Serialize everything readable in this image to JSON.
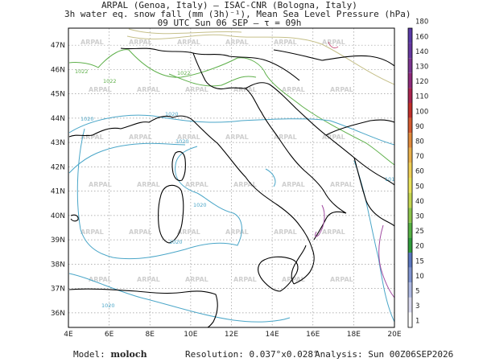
{
  "header": {
    "line1": "ARPAL (Genoa, Italy)  —  ISAC-CNR (Bologna, Italy)",
    "line2": "3h water eq. snow fall (mm (3h)⁻¹), Mean Sea Level Pressure (hPa)",
    "line3": "09 UTC Sun 06 SEP  —  τ = 09h"
  },
  "map": {
    "lon_labels": [
      "4E",
      "6E",
      "8E",
      "10E",
      "12E",
      "14E",
      "16E",
      "18E",
      "20E"
    ],
    "lat_labels": [
      "36N",
      "37N",
      "38N",
      "39N",
      "40N",
      "41N",
      "42N",
      "43N",
      "44N",
      "45N",
      "46N",
      "47N"
    ],
    "watermark": "ARPAL",
    "isobar_labels": [
      "1022",
      "1022",
      "1022",
      "1020",
      "1020",
      "1020",
      "1020",
      "1020",
      "1020",
      "1018"
    ]
  },
  "colorbar": {
    "ticks": [
      "1",
      "3",
      "5",
      "10",
      "15",
      "20",
      "25",
      "30",
      "40",
      "50",
      "60",
      "70",
      "80",
      "90",
      "100",
      "110",
      "120",
      "130",
      "140",
      "160",
      "180"
    ],
    "colors": [
      "#ffffff",
      "#d8d8ee",
      "#aeb9e2",
      "#7f93cf",
      "#5a76be",
      "#2f9a3c",
      "#55b043",
      "#8cc44b",
      "#c3d54f",
      "#e9e25a",
      "#efcf55",
      "#e9b04a",
      "#e08a3b",
      "#d35a30",
      "#c02f2a",
      "#a8244f",
      "#8e2a7a",
      "#7b3590",
      "#66379e",
      "#5a3aa6"
    ]
  },
  "footer": {
    "model_label": "Model:",
    "model_name": "moloch",
    "resolution": "Resolution: 0.037°x0.028°",
    "analysis": "Analysis: Sun 00Z06SEP2026"
  }
}
